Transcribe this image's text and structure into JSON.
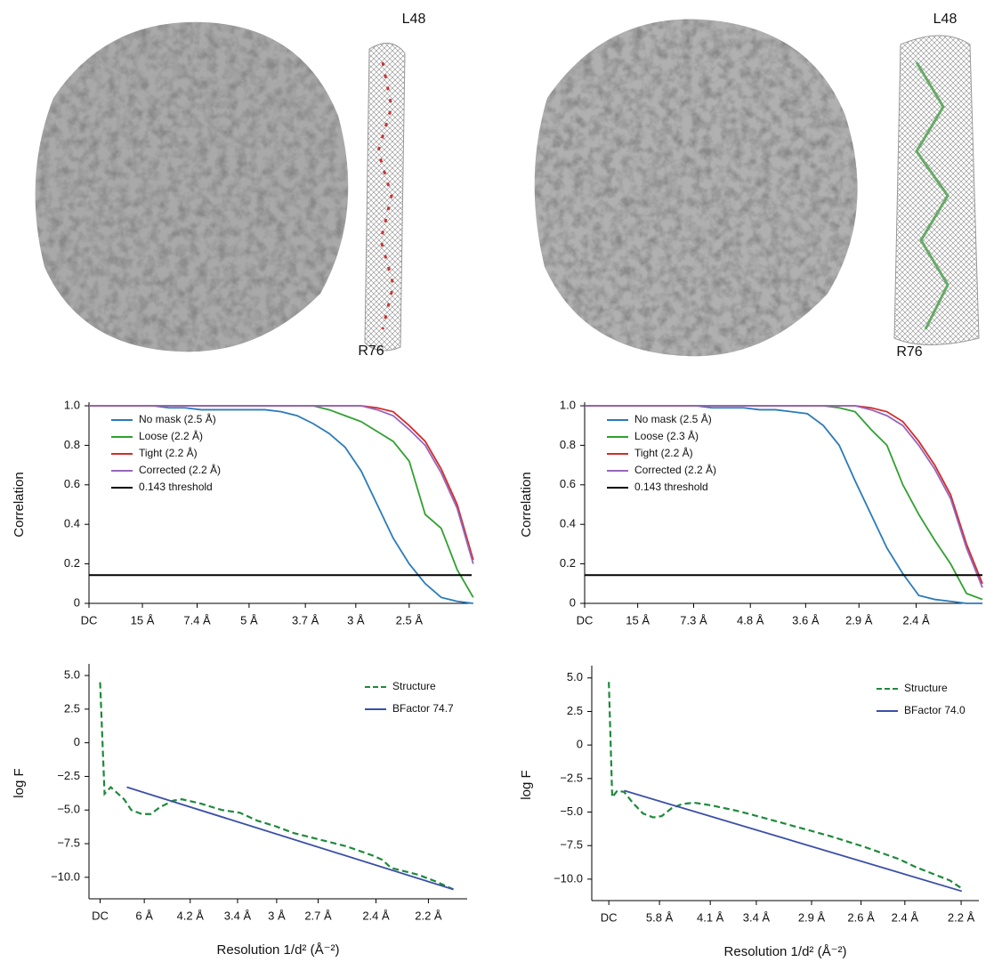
{
  "maps": [
    {
      "top_label": "L48",
      "bottom_label": "R76"
    },
    {
      "top_label": "L48",
      "bottom_label": "R76"
    }
  ],
  "chart_data": [
    {
      "type": "line",
      "y_label": "Correlation",
      "legend": "upper-left",
      "xlim": [
        0,
        0.478
      ],
      "ylim": [
        0,
        1
      ],
      "xticks": [
        {
          "value": 0,
          "label": "DC"
        },
        {
          "value": 0.0667,
          "label": "15 Å"
        },
        {
          "value": 0.1351,
          "label": "7.4 Å"
        },
        {
          "value": 0.2,
          "label": "5 Å"
        },
        {
          "value": 0.2703,
          "label": "3.7 Å"
        },
        {
          "value": 0.3333,
          "label": "3 Å"
        },
        {
          "value": 0.4,
          "label": "2.5 Å"
        }
      ],
      "yticks": [
        0,
        0.2,
        0.4,
        0.6,
        0.8,
        {
          "value": 1,
          "label": "1.0"
        }
      ],
      "x": [
        0,
        0.02,
        0.04,
        0.06,
        0.08,
        0.1,
        0.12,
        0.14,
        0.16,
        0.18,
        0.2,
        0.22,
        0.24,
        0.26,
        0.28,
        0.3,
        0.32,
        0.34,
        0.36,
        0.38,
        0.4,
        0.42,
        0.44,
        0.46,
        0.48
      ],
      "series": [
        {
          "name": "No mask (2.5 Å)",
          "color": "#2b7bb9",
          "values": [
            1,
            1,
            1,
            1,
            1,
            0.99,
            0.99,
            0.98,
            0.98,
            0.98,
            0.98,
            0.98,
            0.97,
            0.95,
            0.91,
            0.86,
            0.79,
            0.67,
            0.5,
            0.33,
            0.2,
            0.1,
            0.03,
            0.01,
            0
          ]
        },
        {
          "name": "Loose (2.2 Å)",
          "color": "#30a030",
          "values": [
            1,
            1,
            1,
            1,
            1,
            1,
            1,
            1,
            1,
            1,
            1,
            1,
            1,
            1,
            1,
            0.98,
            0.95,
            0.92,
            0.87,
            0.82,
            0.72,
            0.45,
            0.38,
            0.17,
            0.03
          ]
        },
        {
          "name": "Tight (2.2 Å)",
          "color": "#d62a2a",
          "values": [
            1,
            1,
            1,
            1,
            1,
            1,
            1,
            1,
            1,
            1,
            1,
            1,
            1,
            1,
            1,
            1,
            1,
            1,
            0.99,
            0.97,
            0.9,
            0.82,
            0.68,
            0.5,
            0.22
          ]
        },
        {
          "name": "Corrected (2.2 Å)",
          "color": "#9467bd",
          "values": [
            1,
            1,
            1,
            1,
            1,
            1,
            1,
            1,
            1,
            1,
            1,
            1,
            1,
            1,
            1,
            1,
            1,
            1,
            0.98,
            0.95,
            0.88,
            0.8,
            0.66,
            0.48,
            0.2
          ]
        }
      ],
      "threshold": {
        "name": "0.143 threshold",
        "color": "#000000",
        "value": 0.143
      }
    },
    {
      "type": "line",
      "y_label": "Correlation",
      "legend": "upper-left",
      "xlim": [
        0,
        0.5
      ],
      "ylim": [
        0,
        1
      ],
      "xticks": [
        {
          "value": 0,
          "label": "DC"
        },
        {
          "value": 0.0667,
          "label": "15 Å"
        },
        {
          "value": 0.137,
          "label": "7.3 Å"
        },
        {
          "value": 0.2083,
          "label": "4.8 Å"
        },
        {
          "value": 0.2778,
          "label": "3.6 Å"
        },
        {
          "value": 0.3448,
          "label": "2.9 Å"
        },
        {
          "value": 0.4167,
          "label": "2.4 Å"
        }
      ],
      "yticks": [
        0,
        0.2,
        0.4,
        0.6,
        0.8,
        {
          "value": 1,
          "label": "1.0"
        }
      ],
      "x": [
        0,
        0.02,
        0.04,
        0.06,
        0.08,
        0.1,
        0.12,
        0.14,
        0.16,
        0.18,
        0.2,
        0.22,
        0.24,
        0.26,
        0.28,
        0.3,
        0.32,
        0.34,
        0.36,
        0.38,
        0.4,
        0.42,
        0.44,
        0.46,
        0.48,
        0.5
      ],
      "series": [
        {
          "name": "No mask (2.5 Å)",
          "color": "#2b7bb9",
          "values": [
            1,
            1,
            1,
            1,
            1,
            1,
            1,
            1,
            0.99,
            0.99,
            0.99,
            0.98,
            0.98,
            0.97,
            0.96,
            0.9,
            0.8,
            0.62,
            0.45,
            0.28,
            0.15,
            0.04,
            0.02,
            0.01,
            0,
            0
          ]
        },
        {
          "name": "Loose (2.3 Å)",
          "color": "#30a030",
          "values": [
            1,
            1,
            1,
            1,
            1,
            1,
            1,
            1,
            1,
            1,
            1,
            1,
            1,
            1,
            1,
            1,
            0.99,
            0.97,
            0.88,
            0.8,
            0.6,
            0.45,
            0.32,
            0.2,
            0.05,
            0.02
          ]
        },
        {
          "name": "Tight (2.2 Å)",
          "color": "#d62a2a",
          "values": [
            1,
            1,
            1,
            1,
            1,
            1,
            1,
            1,
            1,
            1,
            1,
            1,
            1,
            1,
            1,
            1,
            1,
            1,
            0.99,
            0.97,
            0.92,
            0.82,
            0.7,
            0.55,
            0.3,
            0.1
          ]
        },
        {
          "name": "Corrected (2.2 Å)",
          "color": "#9467bd",
          "values": [
            1,
            1,
            1,
            1,
            1,
            1,
            1,
            1,
            1,
            1,
            1,
            1,
            1,
            1,
            1,
            1,
            1,
            1,
            0.98,
            0.95,
            0.9,
            0.8,
            0.68,
            0.53,
            0.28,
            0.08
          ]
        }
      ],
      "threshold": {
        "name": "0.143 threshold",
        "color": "#000000",
        "value": 0.143
      }
    },
    {
      "type": "line",
      "y_label": "log F",
      "x_label": "Resolution 1/d² (Å⁻²)",
      "legend": "upper-right",
      "xlim": [
        -0.007,
        0.231
      ],
      "ylim": [
        -11.6,
        5.6
      ],
      "xticks": [
        {
          "value": 0,
          "label": "DC"
        },
        {
          "value": 0.0278,
          "label": "6 Å"
        },
        {
          "value": 0.0567,
          "label": "4.2 Å"
        },
        {
          "value": 0.0865,
          "label": "3.4 Å"
        },
        {
          "value": 0.1111,
          "label": "3 Å"
        },
        {
          "value": 0.1372,
          "label": "2.7 Å"
        },
        {
          "value": 0.1736,
          "label": "2.4 Å"
        },
        {
          "value": 0.2066,
          "label": "2.2 Å"
        }
      ],
      "yticks": [
        {
          "value": 5,
          "label": "5.0"
        },
        2.5,
        0,
        {
          "value": -2.5,
          "label": "−2.5"
        },
        {
          "value": -5,
          "label": "−5.0"
        },
        {
          "value": -7.5,
          "label": "−7.5"
        },
        {
          "value": -10,
          "label": "−10.0"
        }
      ],
      "series": [
        {
          "name": "Structure",
          "color": "#1e8a3c",
          "dashed": true,
          "x": [
            0,
            0.0028,
            0.0067,
            0.0095,
            0.0151,
            0.0196,
            0.0263,
            0.0319,
            0.0375,
            0.0459,
            0.0515,
            0.0627,
            0.0767,
            0.0879,
            0.0991,
            0.1103,
            0.1215,
            0.1383,
            0.1551,
            0.1719,
            0.1775,
            0.1831,
            0.1999,
            0.2111,
            0.2223
          ],
          "values": [
            4.5,
            -3.8,
            -3.3,
            -3.6,
            -4.2,
            -5.0,
            -5.3,
            -5.3,
            -4.8,
            -4.3,
            -4.2,
            -4.5,
            -5.0,
            -5.2,
            -5.8,
            -6.2,
            -6.7,
            -7.2,
            -7.7,
            -8.4,
            -8.7,
            -9.3,
            -9.8,
            -10.3,
            -10.9
          ]
        },
        {
          "name": "BFactor 74.7",
          "color": "#3a4fa8",
          "x": [
            0.0168,
            0.2223
          ],
          "values": [
            -3.3,
            -10.9
          ]
        }
      ]
    },
    {
      "type": "line",
      "y_label": "log F",
      "x_label": "Resolution 1/d² (Å⁻²)",
      "legend": "upper-right",
      "xlim": [
        -0.01,
        0.217
      ],
      "ylim": [
        -11.6,
        5.65
      ],
      "xticks": [
        {
          "value": 0,
          "label": "DC"
        },
        {
          "value": 0.0297,
          "label": "5.8 Å"
        },
        {
          "value": 0.0595,
          "label": "4.1 Å"
        },
        {
          "value": 0.0865,
          "label": "3.4 Å"
        },
        {
          "value": 0.1189,
          "label": "2.9 Å"
        },
        {
          "value": 0.1479,
          "label": "2.6 Å"
        },
        {
          "value": 0.1736,
          "label": "2.4 Å"
        },
        {
          "value": 0.2066,
          "label": "2.2 Å"
        }
      ],
      "yticks": [
        {
          "value": 5,
          "label": "5.0"
        },
        2.5,
        0,
        {
          "value": -2.5,
          "label": "−2.5"
        },
        {
          "value": -5,
          "label": "−5.0"
        },
        {
          "value": -7.5,
          "label": "−7.5"
        },
        {
          "value": -10,
          "label": "−10.0"
        }
      ],
      "series": [
        {
          "name": "Structure",
          "color": "#1e8a3c",
          "dashed": true,
          "x": [
            0,
            0.002,
            0.005,
            0.009,
            0.014,
            0.02,
            0.026,
            0.031,
            0.037,
            0.043,
            0.05,
            0.06,
            0.075,
            0.09,
            0.11,
            0.13,
            0.15,
            0.17,
            0.18,
            0.19,
            0.2,
            0.207
          ],
          "values": [
            4.7,
            -3.9,
            -3.4,
            -3.5,
            -4.3,
            -5.1,
            -5.4,
            -5.3,
            -4.7,
            -4.4,
            -4.3,
            -4.5,
            -4.9,
            -5.4,
            -6.1,
            -6.8,
            -7.6,
            -8.5,
            -9.1,
            -9.6,
            -10.1,
            -10.7
          ]
        },
        {
          "name": "BFactor 74.0",
          "color": "#3a4fa8",
          "x": [
            0.009,
            0.207
          ],
          "values": [
            -3.4,
            -10.9
          ]
        }
      ]
    }
  ]
}
